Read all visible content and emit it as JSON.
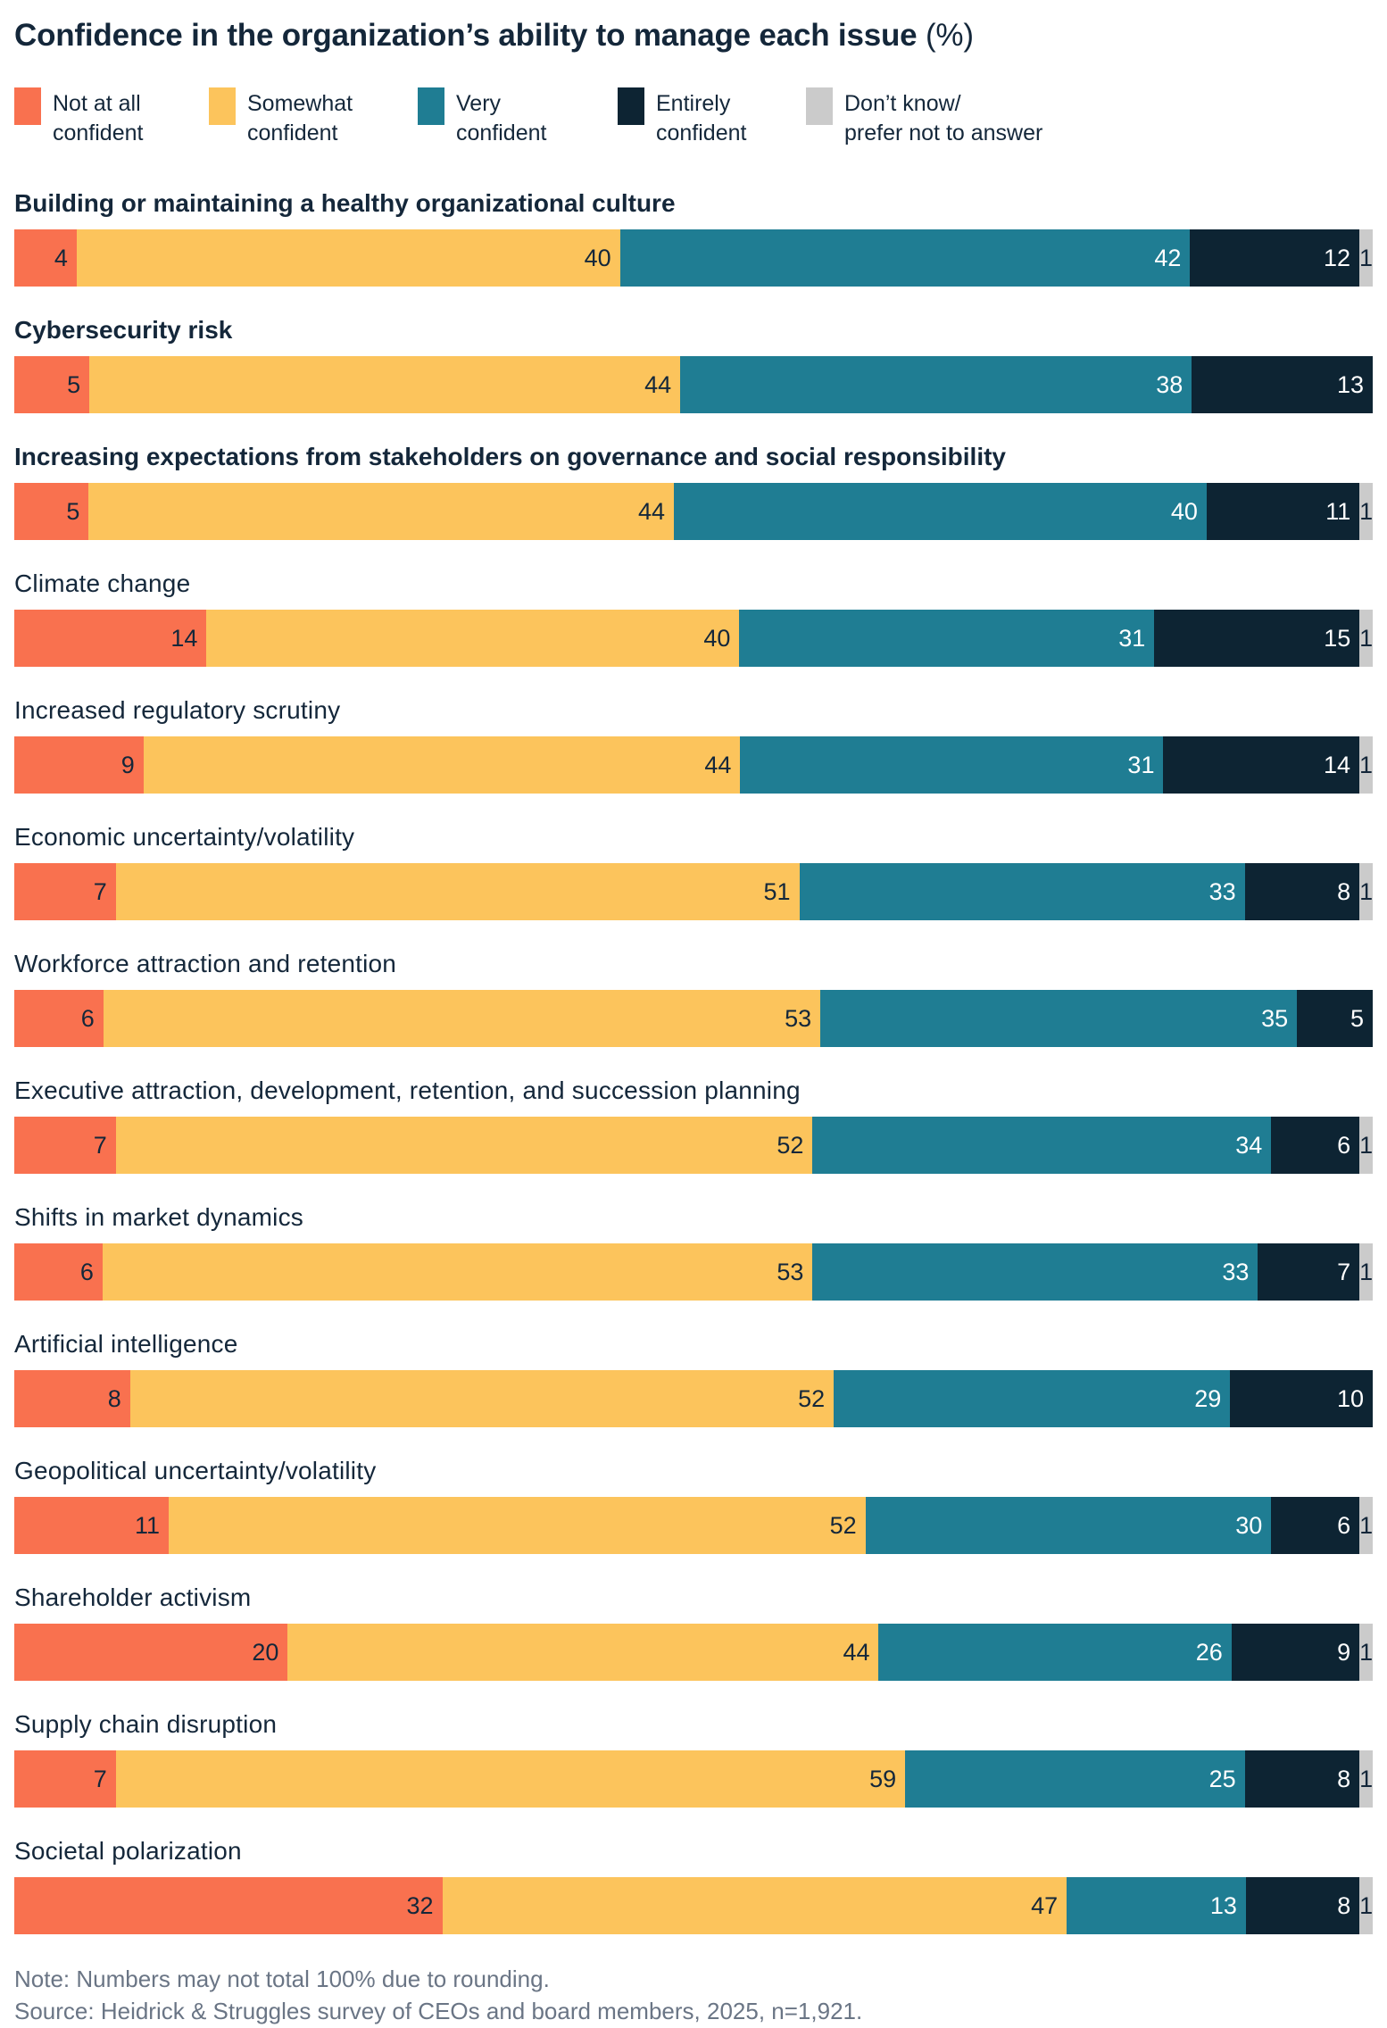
{
  "header": {
    "title_main": "Confidence in the organization’s ability to manage each issue",
    "title_suffix": " (%)"
  },
  "legend": {
    "items": [
      {
        "id": "not-at-all-confident",
        "label": "Not at all\nconfident"
      },
      {
        "id": "somewhat-confident",
        "label": "Somewhat\nconfident"
      },
      {
        "id": "very-confident",
        "label": "Very\nconfident"
      },
      {
        "id": "entirely-confident",
        "label": "Entirely\nconfident"
      },
      {
        "id": "dont-know",
        "label": "Don’t know/\nprefer not to answer"
      }
    ]
  },
  "chart_data": {
    "type": "bar",
    "subtype": "horizontal-stacked-100",
    "title": "Confidence in the organization’s ability to manage each issue (%)",
    "unit": "%",
    "xlim": [
      0,
      100
    ],
    "legend_position": "top",
    "grid": false,
    "series_names": [
      "Not at all confident",
      "Somewhat confident",
      "Very confident",
      "Entirely confident",
      "Don’t know/prefer not to answer"
    ],
    "colors": [
      "#F9714F",
      "#FCC45C",
      "#1F7D93",
      "#0D2433",
      "#CBCBCB"
    ],
    "label_colors": [
      "#14273A",
      "#14273A",
      "#FFFFFF",
      "#FFFFFF",
      "#14273A"
    ],
    "rows": [
      {
        "label": "Building or maintaining a healthy organizational culture",
        "bold": true,
        "values": [
          4,
          40,
          42,
          12,
          1
        ]
      },
      {
        "label": "Cybersecurity risk",
        "bold": true,
        "values": [
          5,
          44,
          38,
          13,
          0
        ]
      },
      {
        "label": "Increasing expectations from stakeholders on governance and social responsibility",
        "bold": true,
        "values": [
          5,
          44,
          40,
          11,
          1
        ]
      },
      {
        "label": "Climate change",
        "bold": false,
        "values": [
          14,
          40,
          31,
          15,
          1
        ]
      },
      {
        "label": "Increased regulatory scrutiny",
        "bold": false,
        "values": [
          9,
          44,
          31,
          14,
          1
        ]
      },
      {
        "label": "Economic uncertainty/volatility",
        "bold": false,
        "values": [
          7,
          51,
          33,
          8,
          1
        ]
      },
      {
        "label": "Workforce attraction and retention",
        "bold": false,
        "values": [
          6,
          53,
          35,
          5,
          0
        ]
      },
      {
        "label": "Executive attraction, development, retention, and succession planning",
        "bold": false,
        "values": [
          7,
          52,
          34,
          6,
          1
        ]
      },
      {
        "label": "Shifts in market dynamics",
        "bold": false,
        "values": [
          6,
          53,
          33,
          7,
          1
        ]
      },
      {
        "label": "Artificial intelligence",
        "bold": false,
        "values": [
          8,
          52,
          29,
          10,
          0
        ]
      },
      {
        "label": "Geopolitical uncertainty/volatility",
        "bold": false,
        "values": [
          11,
          52,
          30,
          6,
          1
        ]
      },
      {
        "label": "Shareholder activism",
        "bold": false,
        "values": [
          20,
          44,
          26,
          9,
          1
        ]
      },
      {
        "label": "Supply chain disruption",
        "bold": false,
        "values": [
          7,
          59,
          25,
          8,
          1
        ]
      },
      {
        "label": "Societal polarization",
        "bold": false,
        "values": [
          32,
          47,
          13,
          8,
          1
        ]
      }
    ]
  },
  "footer": {
    "note": "Note: Numbers may not total 100% due to rounding.",
    "source": "Source: Heidrick & Struggles survey of CEOs and board members, 2025, n=1,921."
  }
}
